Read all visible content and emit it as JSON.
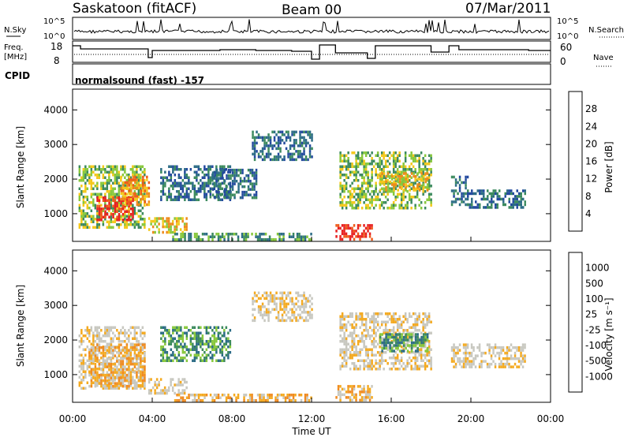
{
  "header": {
    "station": "Saskatoon (fitACF)",
    "beam": "Beam 00",
    "date": "07/Mar/2011"
  },
  "top_panels": {
    "nsky_label": "N.Sky",
    "nsearch_label": "N.Search",
    "nsky_ticks": [
      "10^5",
      "10^0"
    ],
    "freq_label_1": "Freq.",
    "freq_label_2": "[MHz]",
    "freq_ticks": [
      "18",
      "8"
    ],
    "nave_label": "Nave",
    "nave_ticks": [
      "60",
      "0"
    ],
    "cpid_label": "CPID",
    "cpid_text": "normalsound (fast) -157"
  },
  "x_axis": {
    "label": "Time UT",
    "ticks": [
      "00:00",
      "04:00",
      "08:00",
      "12:00",
      "16:00",
      "20:00",
      "00:00"
    ]
  },
  "colors": {
    "power_scale": [
      "#0000ff",
      "#234a9e",
      "#2c6c86",
      "#3c8a5e",
      "#88c83c",
      "#f4c81a",
      "#ee8a1a",
      "#ee5a1a",
      "#e82020"
    ],
    "velocity_scale": [
      "#e81c1c",
      "#ee5a1a",
      "#f08a20",
      "#f4aa20",
      "#c8c8c0",
      "#c8c8c0",
      "#88c83c",
      "#3c8a5e",
      "#2c6c86",
      "#234a9e",
      "#0000ff"
    ]
  },
  "chart_data": [
    {
      "type": "heatmap",
      "name_label": "Power [dB]",
      "ylabel": "Slant Range [km]",
      "xlabel": "Time UT",
      "xlim": [
        0,
        24
      ],
      "ylim": [
        200,
        4600
      ],
      "y_ticks": [
        "1000",
        "2000",
        "3000",
        "4000"
      ],
      "colorbar_ticks": [
        "4",
        "8",
        "12",
        "16",
        "20",
        "24",
        "28"
      ],
      "blobs": [
        {
          "t0": 0.3,
          "t1": 3.6,
          "r0": 600,
          "r1": 2400,
          "level": 4
        },
        {
          "t0": 1.2,
          "t1": 3.0,
          "r0": 800,
          "r1": 1500,
          "level": 8
        },
        {
          "t0": 2.4,
          "t1": 3.8,
          "r0": 1300,
          "r1": 2100,
          "level": 6
        },
        {
          "t0": 3.8,
          "t1": 5.7,
          "r0": 500,
          "r1": 900,
          "level": 5
        },
        {
          "t0": 4.4,
          "t1": 7.9,
          "r0": 1400,
          "r1": 2400,
          "level": 2
        },
        {
          "t0": 7.0,
          "t1": 9.2,
          "r0": 1500,
          "r1": 2300,
          "level": 2
        },
        {
          "t0": 9.0,
          "t1": 12.0,
          "r0": 2600,
          "r1": 3400,
          "level": 2
        },
        {
          "t0": 5.0,
          "t1": 12.0,
          "r0": 250,
          "r1": 450,
          "level": 3
        },
        {
          "t0": 13.2,
          "t1": 15.0,
          "r0": 250,
          "r1": 700,
          "level": 8
        },
        {
          "t0": 13.4,
          "t1": 18.0,
          "r0": 1200,
          "r1": 2800,
          "level": 4
        },
        {
          "t0": 15.4,
          "t1": 17.8,
          "r0": 1700,
          "r1": 2200,
          "level": 5
        },
        {
          "t0": 19.0,
          "t1": 19.8,
          "r0": 1300,
          "r1": 2100,
          "level": 2
        },
        {
          "t0": 19.8,
          "t1": 22.7,
          "r0": 1200,
          "r1": 1700,
          "level": 2
        }
      ]
    },
    {
      "type": "heatmap",
      "name_label": "Velocity [m s⁻¹]",
      "ylabel": "Slant Range [km]",
      "xlabel": "Time UT",
      "xlim": [
        0,
        24
      ],
      "ylim": [
        200,
        4600
      ],
      "y_ticks": [
        "1000",
        "2000",
        "3000",
        "4000"
      ],
      "colorbar_ticks": [
        "-1000",
        "-500",
        "-100",
        "-25",
        "25",
        "100",
        "500",
        "1000"
      ],
      "blobs": [
        {
          "t0": 0.3,
          "t1": 3.6,
          "r0": 600,
          "r1": 2400,
          "level": 4
        },
        {
          "t0": 0.8,
          "t1": 3.6,
          "r0": 700,
          "r1": 1900,
          "level": 3
        },
        {
          "t0": 3.8,
          "t1": 5.7,
          "r0": 500,
          "r1": 900,
          "level": 4
        },
        {
          "t0": 4.4,
          "t1": 7.9,
          "r0": 1400,
          "r1": 2400,
          "level": 7
        },
        {
          "t0": 9.0,
          "t1": 12.0,
          "r0": 2600,
          "r1": 3400,
          "level": 4
        },
        {
          "t0": 5.0,
          "t1": 12.0,
          "r0": 250,
          "r1": 450,
          "level": 3
        },
        {
          "t0": 13.2,
          "t1": 15.0,
          "r0": 250,
          "r1": 700,
          "level": 3
        },
        {
          "t0": 13.4,
          "t1": 18.0,
          "r0": 1200,
          "r1": 2800,
          "level": 4
        },
        {
          "t0": 15.4,
          "t1": 17.8,
          "r0": 1700,
          "r1": 2200,
          "level": 7
        },
        {
          "t0": 19.0,
          "t1": 22.7,
          "r0": 1200,
          "r1": 1900,
          "level": 4
        }
      ]
    }
  ]
}
